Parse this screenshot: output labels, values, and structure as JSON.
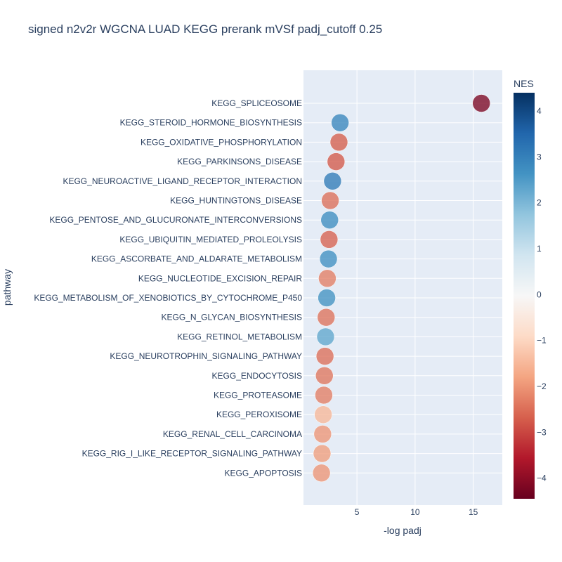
{
  "chart_data": {
    "type": "scatter",
    "title": "signed n2v2r WGCNA LUAD KEGG prerank mVSf padj_cutoff 0.25",
    "xlabel": "-log padj",
    "ylabel": "pathway",
    "xlim": [
      0.4,
      17.5
    ],
    "xticks": [
      5,
      10,
      15
    ],
    "grid": true,
    "colorbar": {
      "title": "NES",
      "range": [
        -4.45,
        4.4
      ],
      "ticks": [
        4,
        3,
        2,
        1,
        0,
        -1,
        -2,
        -3,
        -4
      ],
      "tick_labels": [
        "4",
        "3",
        "2",
        "1",
        "0",
        "−1",
        "−2",
        "−3",
        "−4"
      ],
      "colorscale": [
        [
          0.0,
          "#67001f"
        ],
        [
          0.1,
          "#b2182b"
        ],
        [
          0.2,
          "#d6604d"
        ],
        [
          0.3,
          "#f4a582"
        ],
        [
          0.4,
          "#fddbc7"
        ],
        [
          0.5,
          "#f7f7f7"
        ],
        [
          0.6,
          "#d1e5f0"
        ],
        [
          0.7,
          "#92c5de"
        ],
        [
          0.8,
          "#4393c3"
        ],
        [
          0.9,
          "#2166ac"
        ],
        [
          1.0,
          "#053061"
        ]
      ]
    },
    "points": [
      {
        "pathway": "KEGG_SPLICEOSOME",
        "x": 15.7,
        "nes": -4.2
      },
      {
        "pathway": "KEGG_STEROID_HORMONE_BIOSYNTHESIS",
        "x": 3.55,
        "nes": 2.9
      },
      {
        "pathway": "KEGG_OXIDATIVE_PHOSPHORYLATION",
        "x": 3.45,
        "nes": -2.7
      },
      {
        "pathway": "KEGG_PARKINSONS_DISEASE",
        "x": 3.2,
        "nes": -2.75
      },
      {
        "pathway": "KEGG_NEUROACTIVE_LIGAND_RECEPTOR_INTERACTION",
        "x": 2.9,
        "nes": 3.1
      },
      {
        "pathway": "KEGG_HUNTINGTONS_DISEASE",
        "x": 2.7,
        "nes": -2.5
      },
      {
        "pathway": "KEGG_PENTOSE_AND_GLUCURONATE_INTERCONVERSIONS",
        "x": 2.65,
        "nes": 2.75
      },
      {
        "pathway": "KEGG_UBIQUITIN_MEDIATED_PROLEOLYSIS",
        "x": 2.6,
        "nes": -2.65
      },
      {
        "pathway": "KEGG_ASCORBATE_AND_ALDARATE_METABOLISM",
        "x": 2.55,
        "nes": 2.7
      },
      {
        "pathway": "KEGG_NUCLEOTIDE_EXCISION_REPAIR",
        "x": 2.45,
        "nes": -2.3
      },
      {
        "pathway": "KEGG_METABOLISM_OF_XENOBIOTICS_BY_CYTOCHROME_P450",
        "x": 2.4,
        "nes": 2.65
      },
      {
        "pathway": "KEGG_N_GLYCAN_BIOSYNTHESIS",
        "x": 2.35,
        "nes": -2.45
      },
      {
        "pathway": "KEGG_RETINOL_METABOLISM",
        "x": 2.3,
        "nes": 2.3
      },
      {
        "pathway": "KEGG_NEUROTROPHIN_SIGNALING_PATHWAY",
        "x": 2.25,
        "nes": -2.5
      },
      {
        "pathway": "KEGG_ENDOCYTOSIS",
        "x": 2.2,
        "nes": -2.4
      },
      {
        "pathway": "KEGG_PROTEASOME",
        "x": 2.15,
        "nes": -2.3
      },
      {
        "pathway": "KEGG_PEROXISOME",
        "x": 2.1,
        "nes": -1.5
      },
      {
        "pathway": "KEGG_RENAL_CELL_CARCINOMA",
        "x": 2.05,
        "nes": -2.0
      },
      {
        "pathway": "KEGG_RIG_I_LIKE_RECEPTOR_SIGNALING_PATHWAY",
        "x": 2.0,
        "nes": -1.9
      },
      {
        "pathway": "KEGG_APOPTOSIS",
        "x": 1.95,
        "nes": -2.0
      }
    ]
  }
}
